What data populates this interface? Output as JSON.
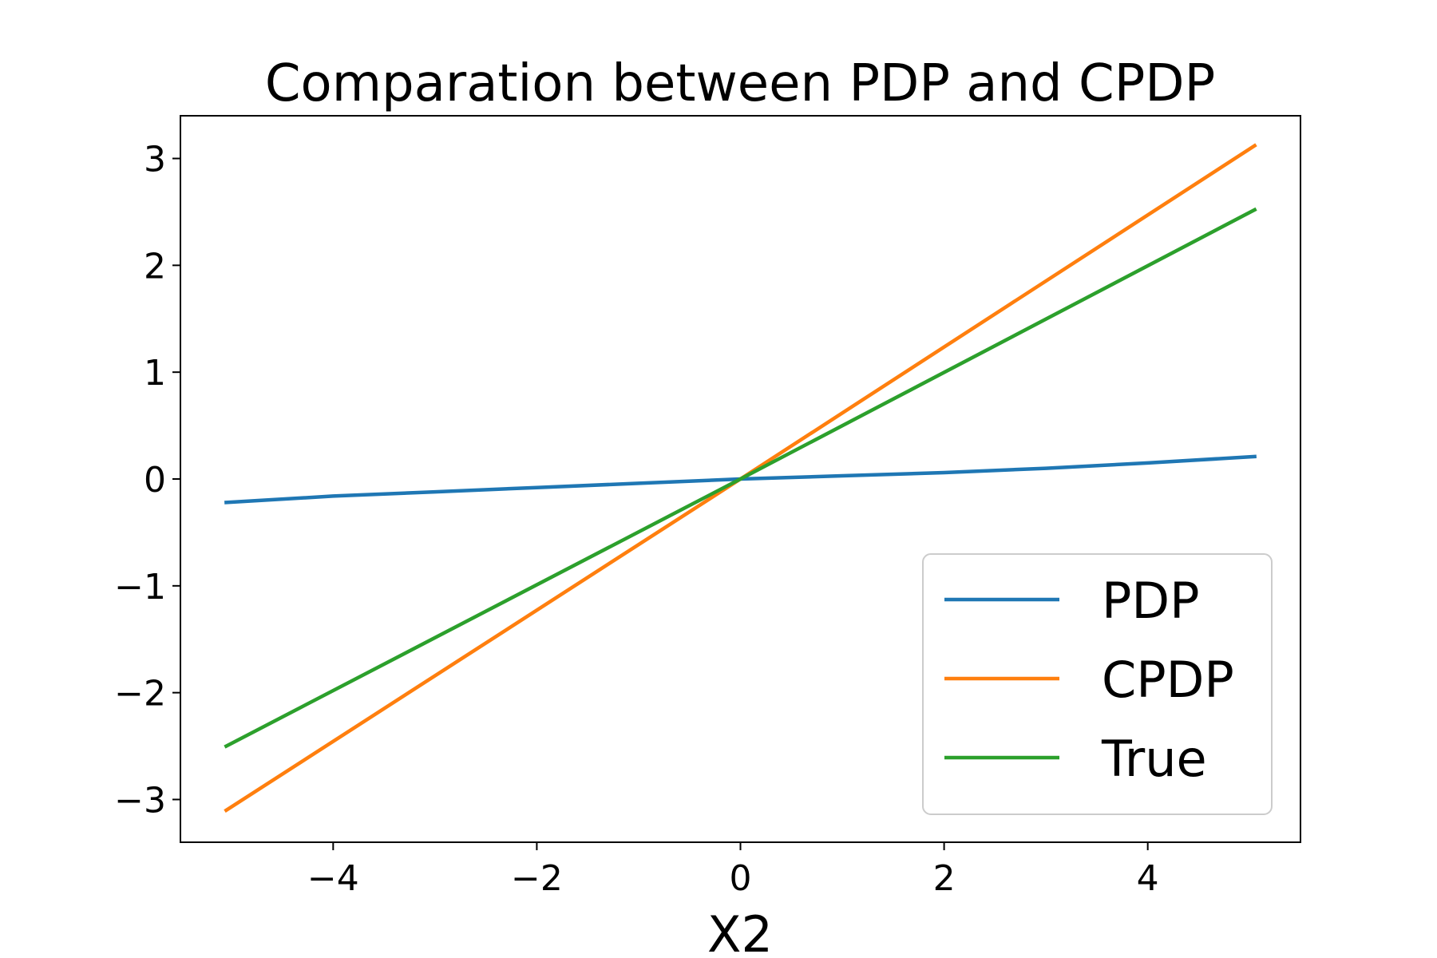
{
  "chart_data": {
    "type": "line",
    "title": "Comparation between PDP and CPDP",
    "xlabel": "X2",
    "ylabel": "",
    "xlim": [
      -5.5,
      5.5
    ],
    "ylim": [
      -3.4,
      3.4
    ],
    "xticks": [
      -4,
      -2,
      0,
      2,
      4
    ],
    "xtick_labels": [
      "−4",
      "−2",
      "0",
      "2",
      "4"
    ],
    "yticks": [
      -3,
      -2,
      -1,
      0,
      1,
      2,
      3
    ],
    "ytick_labels": [
      "−3",
      "−2",
      "−1",
      "0",
      "1",
      "2",
      "3"
    ],
    "grid": false,
    "legend_position": "lower-right",
    "series": [
      {
        "name": "PDP",
        "color": "#1f77b4",
        "x": [
          -5.05,
          -4,
          -3,
          -2,
          -1,
          0,
          1,
          2,
          3,
          4,
          5.05
        ],
        "y": [
          -0.22,
          -0.16,
          -0.12,
          -0.08,
          -0.04,
          0,
          0.03,
          0.06,
          0.1,
          0.15,
          0.21
        ]
      },
      {
        "name": "CPDP",
        "color": "#ff7f0e",
        "x": [
          -5.05,
          0,
          5.05
        ],
        "y": [
          -3.1,
          0,
          3.12
        ]
      },
      {
        "name": "True",
        "color": "#2ca02c",
        "x": [
          -5.05,
          0,
          5.05
        ],
        "y": [
          -2.5,
          0,
          2.52
        ]
      }
    ]
  }
}
